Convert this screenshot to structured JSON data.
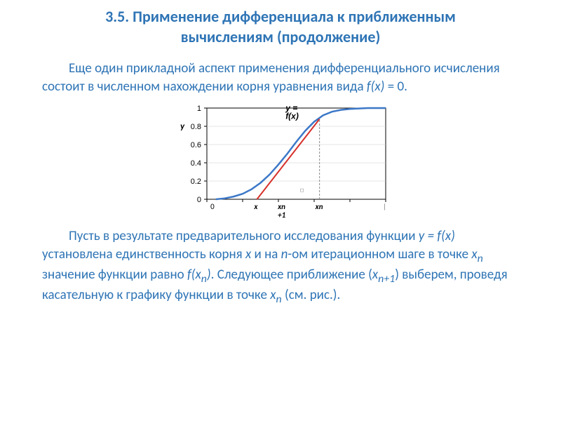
{
  "title_line1": "3.5. Применение дифференциала к приближенным",
  "title_line2": "вычислениям (продолжение)",
  "para1_a": "Еще один прикладной аспект применения дифференциального исчисления состоит в численном нахождении корня уравнения вида ",
  "para1_fx": "f(x)",
  "para1_b": " = 0.",
  "para2_a": "Пусть в результате предварительного исследования функции ",
  "para2_yfx": "y = f(x)",
  "para2_b": " установлена единственность корня ",
  "para2_x": "x",
  "para2_c": " и на ",
  "para2_n": "n",
  "para2_d": "-ом итерационном шаге в точке ",
  "para2_xn": "x",
  "para2_xn_sub": "n",
  "para2_e": " значение функции  равно ",
  "para2_fx2": "f(x",
  "para2_fx2_sub": "n",
  "para2_fx2_end": ")",
  "para2_f": ". Следующее приближение (",
  "para2_xn1": "x",
  "para2_xn1_sub": "n+1",
  "para2_g": ") выберем, проведя касательную к графику функции в точке ",
  "para2_xn2": "x",
  "para2_xn2_sub": "n",
  "para2_h": " (см. рис.).",
  "chart": {
    "ylim": [
      0,
      1
    ],
    "xlim": [
      0,
      1
    ],
    "yticks": [
      0,
      0.2,
      0.4,
      0.6,
      0.8,
      1
    ],
    "ylabel": "y",
    "curve_label": "y = f(x)",
    "xn_label": "xn",
    "xn1_label_a": "xn",
    "xn1_label_b": "+1",
    "xroot_label": "x",
    "curve_color": "#3C78C8",
    "tangent_color": "#D6302A",
    "axis_color": "#000000",
    "grid_color": "#cccccc",
    "tick_color": "#6e6e6e",
    "bg": "#ffffff",
    "curve_points": [
      [
        0.05,
        0.0
      ],
      [
        0.1,
        0.01
      ],
      [
        0.15,
        0.03
      ],
      [
        0.2,
        0.06
      ],
      [
        0.25,
        0.11
      ],
      [
        0.3,
        0.18
      ],
      [
        0.35,
        0.27
      ],
      [
        0.4,
        0.38
      ],
      [
        0.45,
        0.5
      ],
      [
        0.5,
        0.63
      ],
      [
        0.55,
        0.75
      ],
      [
        0.6,
        0.85
      ],
      [
        0.65,
        0.92
      ],
      [
        0.7,
        0.96
      ],
      [
        0.75,
        0.98
      ],
      [
        0.8,
        0.99
      ],
      [
        0.85,
        0.995
      ],
      [
        0.9,
        1.0
      ],
      [
        0.95,
        1.0
      ],
      [
        1.0,
        1.0
      ]
    ],
    "tangent_p1": [
      0.28,
      0.0
    ],
    "tangent_p2": [
      0.63,
      0.88
    ],
    "xn_pos": 0.63,
    "root_pos": 0.28,
    "xn1_pos": 0.42,
    "dash_y": 0.88
  }
}
